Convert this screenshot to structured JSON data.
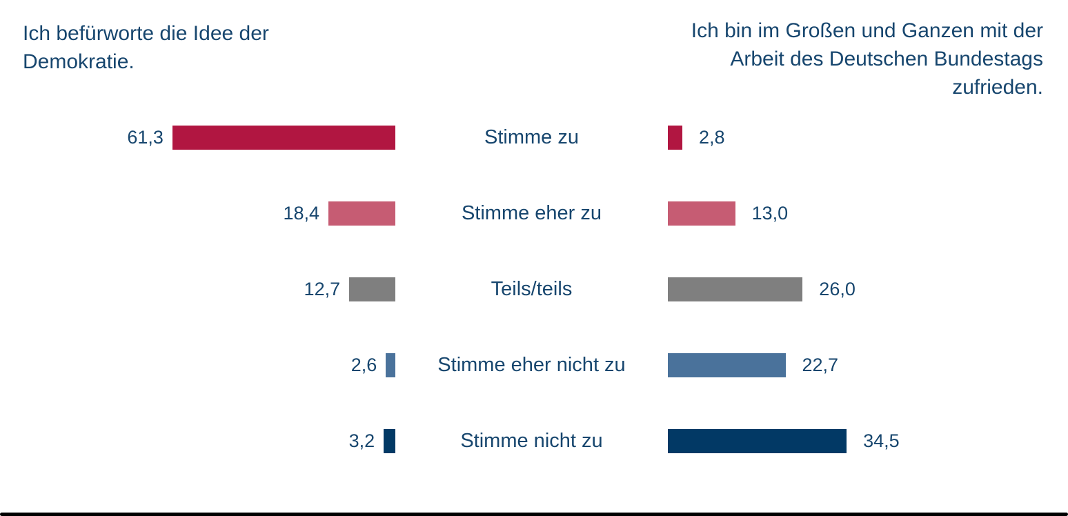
{
  "chart_data": {
    "type": "bar",
    "orientation": "horizontal",
    "layout": "back-to-back butterfly bars, left panel right-anchored, right panel left-anchored, category labels centered between panels, value labels beside bars, no axes, no gridlines",
    "value_format": "decimal comma, one decimal place",
    "categories": [
      "Stimme zu",
      "Stimme eher zu",
      "Teils/teils",
      "Stimme eher nicht zu",
      "Stimme nicht zu"
    ],
    "category_colors": [
      "#B11641",
      "#C65C73",
      "#7F7F7F",
      "#4A729B",
      "#023965"
    ],
    "series": [
      {
        "name": "Ich befürworte die Idee der Demokratie.",
        "values": [
          61.3,
          18.4,
          12.7,
          2.6,
          3.2
        ],
        "labels": [
          "61,3",
          "18,4",
          "12,7",
          "2,6",
          "3,2"
        ]
      },
      {
        "name": "Ich bin im Großen und Ganzen mit der Arbeit des Deutschen Bundestags zufrieden.",
        "values": [
          2.8,
          13.0,
          26.0,
          22.7,
          34.5
        ],
        "labels": [
          "2,8",
          "13,0",
          "26,0",
          "22,7",
          "34,5"
        ]
      }
    ],
    "xlim_left_panel": [
      0,
      65
    ],
    "xlim_right_panel": [
      0,
      40
    ]
  },
  "titles": {
    "left_lines": [
      "Ich befürworte die Idee der",
      "Demokratie."
    ],
    "right_lines": [
      "Ich bin im Großen und Ganzen mit der",
      "Arbeit des Deutschen Bundestags",
      "zufrieden."
    ]
  },
  "text_color": "#17466E"
}
